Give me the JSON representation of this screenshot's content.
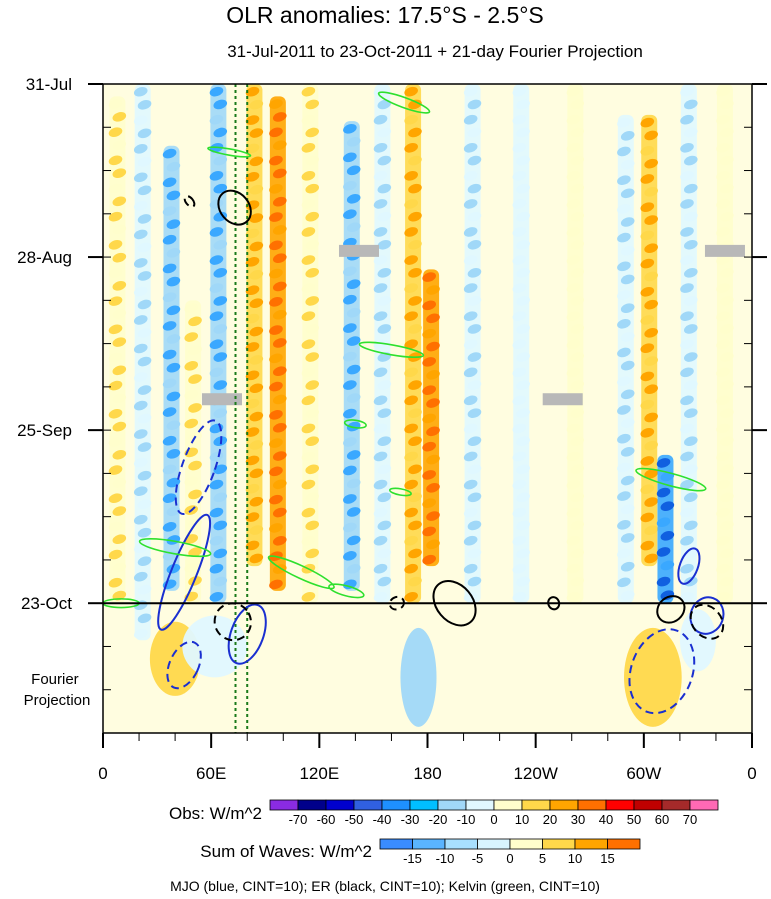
{
  "chart_data": {
    "type": "heatmap",
    "title": "OLR anomalies: 17.5°S - 2.5°S",
    "subtitle": "31-Jul-2011 to 23-Oct-2011 + 21-day Fourier Projection",
    "x_axis": {
      "tick_labels": [
        "0",
        "60E",
        "120E",
        "180",
        "120W",
        "60W",
        "0"
      ],
      "tick_longitudes": [
        0,
        60,
        120,
        180,
        240,
        300,
        360
      ],
      "range": [
        0,
        360
      ]
    },
    "y_axis": {
      "tick_labels": [
        "31-Jul",
        "28-Aug",
        "25-Sep",
        "23-Oct"
      ],
      "tick_days": [
        0,
        28,
        56,
        84
      ],
      "range_days": [
        0,
        105
      ],
      "projection_label": "Fourier Projection",
      "divider_day": 84
    },
    "reference_longitudes": [
      73.5,
      80
    ],
    "obs_colorbar": {
      "label": "Obs: W/m^2",
      "levels": [
        "-70",
        "-60",
        "-50",
        "-40",
        "-30",
        "-20",
        "-10",
        "0",
        "10",
        "20",
        "30",
        "40",
        "50",
        "60",
        "70"
      ],
      "colors": [
        "#8a2be2",
        "#00008b",
        "#0000cd",
        "#3060e0",
        "#1e90ff",
        "#00bfff",
        "#a0d8f8",
        "#e0f8ff",
        "#fffecc",
        "#ffd84a",
        "#ffa500",
        "#ff7000",
        "#ff0000",
        "#c00000",
        "#a52a2a",
        "#ff69b4"
      ]
    },
    "waves_colorbar": {
      "label": "Sum of Waves: W/m^2",
      "levels": [
        "-15",
        "-10",
        "-5",
        "0",
        "5",
        "10",
        "15"
      ],
      "colors": [
        "#3a8cff",
        "#5ab4ff",
        "#a8e0ff",
        "#d8f4ff",
        "#fffecc",
        "#ffd84a",
        "#ffa500",
        "#ff7000"
      ]
    },
    "footnote": "MJO (blue, CINT=10); ER (black, CINT=10); Kelvin (green, CINT=10)",
    "bands": [
      {
        "lon": 8,
        "day0": 2,
        "day1": 84,
        "sign": "+",
        "level": 1
      },
      {
        "lon": 22,
        "day0": 0,
        "day1": 90,
        "sign": "-",
        "level": 1
      },
      {
        "lon": 38,
        "day0": 10,
        "day1": 82,
        "sign": "-",
        "level": 2
      },
      {
        "lon": 50,
        "day0": 35,
        "day1": 84,
        "sign": "+",
        "level": 1
      },
      {
        "lon": 64,
        "day0": 0,
        "day1": 84,
        "sign": "-",
        "level": 2
      },
      {
        "lon": 84,
        "day0": 0,
        "day1": 78,
        "sign": "+",
        "level": 2
      },
      {
        "lon": 97,
        "day0": 2,
        "day1": 82,
        "sign": "+",
        "level": 3
      },
      {
        "lon": 115,
        "day0": 0,
        "day1": 84,
        "sign": "+",
        "level": 1
      },
      {
        "lon": 138,
        "day0": 6,
        "day1": 82,
        "sign": "-",
        "level": 2
      },
      {
        "lon": 155,
        "day0": 0,
        "day1": 84,
        "sign": "-",
        "level": 1
      },
      {
        "lon": 172,
        "day0": 0,
        "day1": 84,
        "sign": "+",
        "level": 2
      },
      {
        "lon": 182,
        "day0": 30,
        "day1": 78,
        "sign": "+",
        "level": 3
      },
      {
        "lon": 205,
        "day0": 0,
        "day1": 84,
        "sign": "-",
        "level": 1
      },
      {
        "lon": 232,
        "day0": 0,
        "day1": 84,
        "sign": "-",
        "level": 0
      },
      {
        "lon": 262,
        "day0": 0,
        "day1": 84,
        "sign": "+",
        "level": 0
      },
      {
        "lon": 290,
        "day0": 5,
        "day1": 84,
        "sign": "-",
        "level": 1
      },
      {
        "lon": 303,
        "day0": 5,
        "day1": 78,
        "sign": "+",
        "level": 2
      },
      {
        "lon": 312,
        "day0": 60,
        "day1": 84,
        "sign": "-",
        "level": 3
      },
      {
        "lon": 325,
        "day0": 0,
        "day1": 84,
        "sign": "-",
        "level": 1
      },
      {
        "lon": 345,
        "day0": 0,
        "day1": 84,
        "sign": "+",
        "level": 0
      }
    ],
    "projection_blobs": [
      {
        "lon": 40,
        "day": 93,
        "rlon": 14,
        "rday": 6,
        "sign": "+",
        "level": 1
      },
      {
        "lon": 62,
        "day": 91,
        "rlon": 18,
        "rday": 5,
        "sign": "-",
        "level": 0
      },
      {
        "lon": 175,
        "day": 96,
        "rlon": 10,
        "rday": 8,
        "sign": "-",
        "level": 1
      },
      {
        "lon": 305,
        "day": 96,
        "rlon": 16,
        "rday": 8,
        "sign": "+",
        "level": 1
      },
      {
        "lon": 330,
        "day": 90,
        "rlon": 10,
        "rday": 5,
        "sign": "-",
        "level": 0
      }
    ],
    "missing_data": [
      {
        "lon": 142,
        "day": 27
      },
      {
        "lon": 255,
        "day": 51
      },
      {
        "lon": 345,
        "day": 27
      },
      {
        "lon": 66,
        "day": 51
      }
    ],
    "wave_contours": [
      {
        "wave": "MJO",
        "lon": 53,
        "day": 62,
        "rlon": 9,
        "rday": 8,
        "rot": 20,
        "dash": true
      },
      {
        "wave": "MJO",
        "lon": 45,
        "day": 79,
        "rlon": 7,
        "rday": 10,
        "rot": 22,
        "dash": false
      },
      {
        "wave": "MJO",
        "lon": 80,
        "day": 89,
        "rlon": 9,
        "rday": 5,
        "rot": 20,
        "dash": false
      },
      {
        "wave": "MJO",
        "lon": 45,
        "day": 94,
        "rlon": 8,
        "rday": 4,
        "rot": 25,
        "dash": true
      },
      {
        "wave": "MJO",
        "lon": 310,
        "day": 95,
        "rlon": 17,
        "rday": 7,
        "rot": 20,
        "dash": true
      },
      {
        "wave": "MJO",
        "lon": 325,
        "day": 78,
        "rlon": 5,
        "rday": 3,
        "rot": 20,
        "dash": false
      },
      {
        "wave": "MJO",
        "lon": 335,
        "day": 86,
        "rlon": 9,
        "rday": 3,
        "rot": 20,
        "dash": false
      },
      {
        "wave": "ER",
        "lon": 73,
        "day": 20,
        "rlon": 8,
        "rday": 3,
        "rot": -40,
        "dash": false
      },
      {
        "wave": "ER",
        "lon": 48,
        "day": 19,
        "rlon": 2,
        "rday": 1,
        "rot": -40,
        "dash": true
      },
      {
        "wave": "ER",
        "lon": 72,
        "day": 87,
        "rlon": 10,
        "rday": 3,
        "rot": -30,
        "dash": true
      },
      {
        "wave": "ER",
        "lon": 195,
        "day": 84,
        "rlon": 10,
        "rday": 4,
        "rot": -40,
        "dash": false
      },
      {
        "wave": "ER",
        "lon": 315,
        "day": 85,
        "rlon": 8,
        "rday": 2,
        "rot": -40,
        "dash": false
      },
      {
        "wave": "ER",
        "lon": 335,
        "day": 87,
        "rlon": 8,
        "rday": 3,
        "rot": -40,
        "dash": true
      },
      {
        "wave": "ER",
        "lon": 163,
        "day": 84,
        "rlon": 4,
        "rday": 1,
        "rot": -20,
        "dash": true
      },
      {
        "wave": "ER",
        "lon": 250,
        "day": 84,
        "rlon": 3,
        "rday": 1,
        "rot": -20,
        "dash": false
      },
      {
        "wave": "Kelvin",
        "lon": 167,
        "day": 3,
        "rlon": 15,
        "rday": 0.8,
        "rot": 20,
        "dash": false
      },
      {
        "wave": "Kelvin",
        "lon": 70,
        "day": 11,
        "rlon": 12,
        "rday": 0.5,
        "rot": 10,
        "dash": false
      },
      {
        "wave": "Kelvin",
        "lon": 160,
        "day": 43,
        "rlon": 18,
        "rday": 0.8,
        "rot": 10,
        "dash": false
      },
      {
        "wave": "Kelvin",
        "lon": 140,
        "day": 55,
        "rlon": 6,
        "rday": 0.6,
        "rot": 8,
        "dash": false
      },
      {
        "wave": "Kelvin",
        "lon": 315,
        "day": 64,
        "rlon": 20,
        "rday": 1,
        "rot": 15,
        "dash": false
      },
      {
        "wave": "Kelvin",
        "lon": 40,
        "day": 75,
        "rlon": 20,
        "rday": 1,
        "rot": 10,
        "dash": false
      },
      {
        "wave": "Kelvin",
        "lon": 110,
        "day": 79,
        "rlon": 20,
        "rday": 1,
        "rot": 25,
        "dash": false
      },
      {
        "wave": "Kelvin",
        "lon": 135,
        "day": 82,
        "rlon": 10,
        "rday": 0.8,
        "rot": 15,
        "dash": false
      },
      {
        "wave": "Kelvin",
        "lon": 10,
        "day": 84,
        "rlon": 10,
        "rday": 0.7,
        "rot": 0,
        "dash": false
      },
      {
        "wave": "Kelvin",
        "lon": 165,
        "day": 66,
        "rlon": 6,
        "rday": 0.5,
        "rot": 10,
        "dash": false
      }
    ]
  },
  "wave_colors": {
    "MJO": "#1a2fd0",
    "ER": "#000000",
    "Kelvin": "#2ee02e"
  },
  "field_colors": {
    "pos": [
      "#fffecc",
      "#ffd84a",
      "#ffa500",
      "#ff7000"
    ],
    "neg": [
      "#e0f8ff",
      "#a0d8f8",
      "#3aa8ff",
      "#1060e0"
    ],
    "missing": "#b8b8b8",
    "reference_line": "#1a7a1a"
  }
}
